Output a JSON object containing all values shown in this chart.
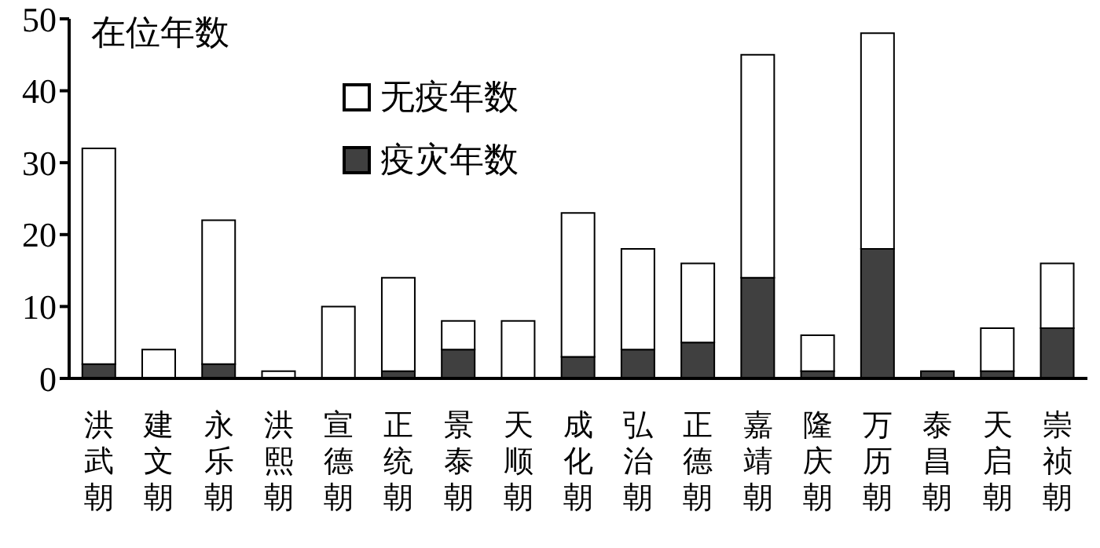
{
  "chart_data": {
    "type": "bar",
    "stacked": true,
    "ylabel": "在位年数",
    "categories": [
      "洪武朝",
      "建文朝",
      "永乐朝",
      "洪熙朝",
      "宣德朝",
      "正统朝",
      "景泰朝",
      "天顺朝",
      "成化朝",
      "弘治朝",
      "正德朝",
      "嘉靖朝",
      "隆庆朝",
      "万历朝",
      "泰昌朝",
      "天启朝",
      "崇祯朝"
    ],
    "series": [
      {
        "name": "疫灾年数",
        "color": "#404040",
        "values": [
          2,
          0,
          2,
          0,
          0,
          1,
          4,
          0,
          3,
          4,
          5,
          14,
          1,
          18,
          1,
          1,
          7
        ]
      },
      {
        "name": "无疫年数",
        "color": "#ffffff",
        "values": [
          30,
          4,
          20,
          1,
          10,
          13,
          4,
          8,
          20,
          14,
          11,
          31,
          5,
          30,
          0,
          6,
          9
        ]
      }
    ],
    "ylim": [
      0,
      50
    ],
    "yticks": [
      0,
      10,
      20,
      30,
      40,
      50
    ],
    "legend": "top left"
  }
}
